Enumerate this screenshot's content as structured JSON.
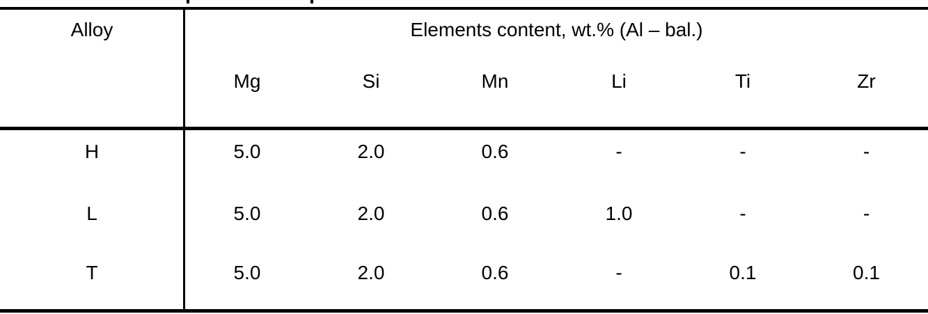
{
  "table": {
    "alloy_header": "Alloy",
    "elements_header": "Elements content, wt.% (Al – bal.)",
    "element_columns": [
      "Mg",
      "Si",
      "Mn",
      "Li",
      "Ti",
      "Zr"
    ],
    "rows": [
      {
        "alloy": "H",
        "values": [
          "5.0",
          "2.0",
          "0.6",
          "-",
          "-",
          "-"
        ]
      },
      {
        "alloy": "L",
        "values": [
          "5.0",
          "2.0",
          "0.6",
          "1.0",
          "-",
          "-"
        ]
      },
      {
        "alloy": "T",
        "values": [
          "5.0",
          "2.0",
          "0.6",
          "-",
          "0.1",
          "0.1"
        ]
      }
    ],
    "colors": {
      "text": "#000000",
      "background": "#ffffff",
      "rule": "#000000"
    }
  }
}
